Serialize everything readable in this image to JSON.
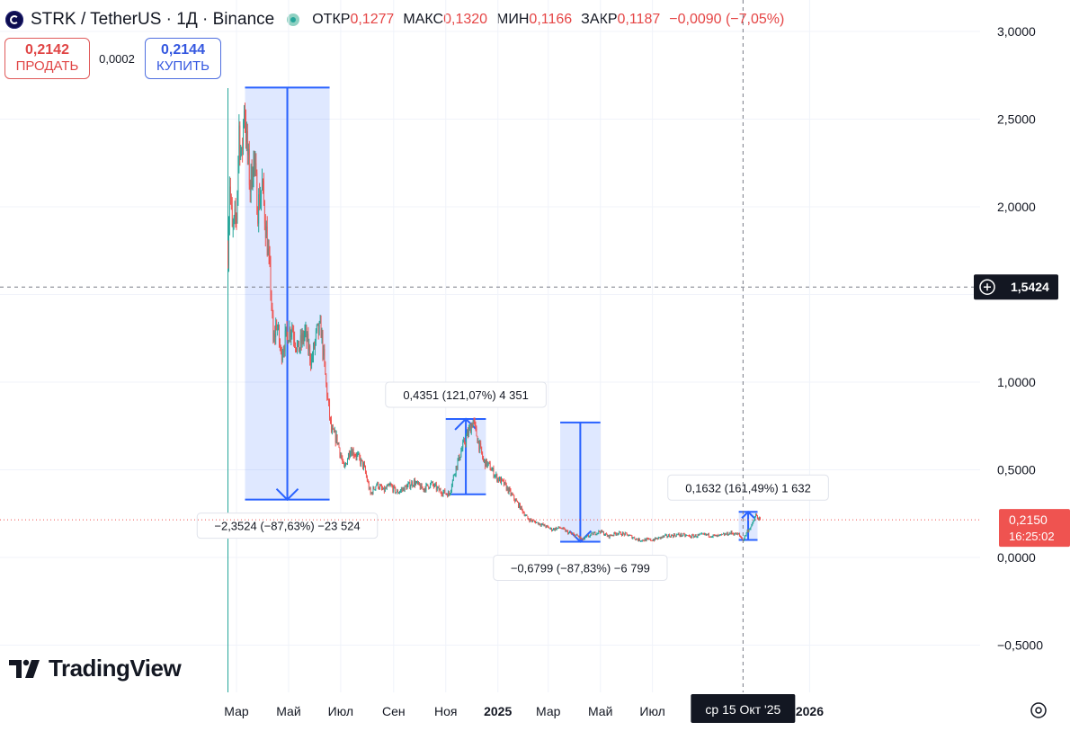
{
  "header": {
    "symbol_label": "STRK / TetherUS · 1Д · Binance",
    "open_label": "ОТКР",
    "open_value": "0,1277",
    "high_label": "МАКС",
    "high_value": "0,1320",
    "low_label": "МИН",
    "low_value": "0,1166",
    "close_label": "ЗАКР",
    "close_value": "0,1187",
    "change_value": "−0,0090 (−7,05%)"
  },
  "trade": {
    "sell_price": "0,2142",
    "sell_label": "ПРОДАТЬ",
    "spread": "0,0002",
    "buy_price": "0,2144",
    "buy_label": "КУПИТЬ"
  },
  "branding": {
    "logo_text": "TradingView"
  },
  "colors": {
    "up": "#26a69a",
    "down": "#ef5350",
    "measure_line": "#2962ff",
    "measure_fill": "#2962ff",
    "price_tag": "#ef5350",
    "crosshair_tag": "#131722"
  },
  "chart_data": {
    "type": "candlestick",
    "ylim": [
      -0.75,
      3.1
    ],
    "y_tick_values": [
      -0.5,
      0,
      0.5,
      1.0,
      1.5,
      2.0,
      2.5,
      3.0
    ],
    "y_tick_labels": [
      "−0,5000",
      "0,0000",
      "0,5000",
      "1,0000",
      "",
      "2,0000",
      "2,5000",
      "3,0000"
    ],
    "x_tick_labels": [
      {
        "date": "2024-03-01",
        "label": "Мар",
        "bold": false
      },
      {
        "date": "2024-05-01",
        "label": "Май",
        "bold": false
      },
      {
        "date": "2024-07-01",
        "label": "Июл",
        "bold": false
      },
      {
        "date": "2024-09-01",
        "label": "Сен",
        "bold": false
      },
      {
        "date": "2024-11-01",
        "label": "Ноя",
        "bold": false
      },
      {
        "date": "2025-01-01",
        "label": "2025",
        "bold": true
      },
      {
        "date": "2025-03-01",
        "label": "Мар",
        "bold": false
      },
      {
        "date": "2025-05-01",
        "label": "Май",
        "bold": false
      },
      {
        "date": "2025-07-01",
        "label": "Июл",
        "bold": false
      },
      {
        "date": "2026-01-01",
        "label": "2026",
        "bold": true
      }
    ],
    "price_path": [
      [
        "2024-02-20",
        1.75
      ],
      [
        "2024-02-22",
        2.15
      ],
      [
        "2024-02-25",
        1.85
      ],
      [
        "2024-03-01",
        1.95
      ],
      [
        "2024-03-04",
        2.45
      ],
      [
        "2024-03-07",
        2.25
      ],
      [
        "2024-03-10",
        2.6
      ],
      [
        "2024-03-13",
        2.35
      ],
      [
        "2024-03-17",
        2.12
      ],
      [
        "2024-03-21",
        2.28
      ],
      [
        "2024-03-26",
        2.0
      ],
      [
        "2024-03-31",
        2.12
      ],
      [
        "2024-04-05",
        1.85
      ],
      [
        "2024-04-10",
        1.55
      ],
      [
        "2024-04-13",
        1.22
      ],
      [
        "2024-04-17",
        1.34
      ],
      [
        "2024-04-22",
        1.16
      ],
      [
        "2024-04-28",
        1.26
      ],
      [
        "2024-05-05",
        1.32
      ],
      [
        "2024-05-12",
        1.18
      ],
      [
        "2024-05-20",
        1.28
      ],
      [
        "2024-05-28",
        1.12
      ],
      [
        "2024-06-03",
        1.28
      ],
      [
        "2024-06-08",
        1.3
      ],
      [
        "2024-06-14",
        0.98
      ],
      [
        "2024-06-20",
        0.72
      ],
      [
        "2024-06-27",
        0.67
      ],
      [
        "2024-07-05",
        0.5
      ],
      [
        "2024-07-12",
        0.62
      ],
      [
        "2024-07-20",
        0.58
      ],
      [
        "2024-07-28",
        0.52
      ],
      [
        "2024-08-05",
        0.36
      ],
      [
        "2024-08-12",
        0.42
      ],
      [
        "2024-08-20",
        0.38
      ],
      [
        "2024-08-28",
        0.41
      ],
      [
        "2024-09-05",
        0.37
      ],
      [
        "2024-09-15",
        0.4
      ],
      [
        "2024-09-25",
        0.43
      ],
      [
        "2024-10-05",
        0.39
      ],
      [
        "2024-10-15",
        0.42
      ],
      [
        "2024-10-25",
        0.38
      ],
      [
        "2024-11-05",
        0.36
      ],
      [
        "2024-11-12",
        0.5
      ],
      [
        "2024-11-20",
        0.62
      ],
      [
        "2024-11-28",
        0.72
      ],
      [
        "2024-12-03",
        0.78
      ],
      [
        "2024-12-08",
        0.68
      ],
      [
        "2024-12-15",
        0.55
      ],
      [
        "2024-12-22",
        0.52
      ],
      [
        "2024-12-30",
        0.46
      ],
      [
        "2025-01-08",
        0.42
      ],
      [
        "2025-01-18",
        0.35
      ],
      [
        "2025-01-28",
        0.28
      ],
      [
        "2025-02-05",
        0.22
      ],
      [
        "2025-02-15",
        0.2
      ],
      [
        "2025-02-25",
        0.18
      ],
      [
        "2025-03-05",
        0.16
      ],
      [
        "2025-03-15",
        0.17
      ],
      [
        "2025-03-25",
        0.14
      ],
      [
        "2025-04-05",
        0.12
      ],
      [
        "2025-04-10",
        0.1
      ],
      [
        "2025-04-20",
        0.13
      ],
      [
        "2025-05-01",
        0.15
      ],
      [
        "2025-05-10",
        0.12
      ],
      [
        "2025-05-20",
        0.14
      ],
      [
        "2025-06-01",
        0.13
      ],
      [
        "2025-06-15",
        0.1
      ],
      [
        "2025-07-01",
        0.1
      ],
      [
        "2025-07-15",
        0.12
      ],
      [
        "2025-08-01",
        0.13
      ],
      [
        "2025-08-15",
        0.12
      ],
      [
        "2025-09-01",
        0.13
      ],
      [
        "2025-09-15",
        0.12
      ],
      [
        "2025-10-01",
        0.14
      ],
      [
        "2025-10-10",
        0.13
      ],
      [
        "2025-10-15",
        0.1
      ],
      [
        "2025-10-20",
        0.15
      ],
      [
        "2025-10-25",
        0.18
      ],
      [
        "2025-10-30",
        0.24
      ],
      [
        "2025-11-04",
        0.21
      ]
    ],
    "measurements": [
      {
        "x_start": "2024-03-11",
        "x_end": "2024-06-18",
        "y_from": 2.68,
        "y_to": 0.33,
        "direction": "down",
        "label": "−2,3524 (−87,63%) −23 524"
      },
      {
        "x_start": "2024-11-01",
        "x_end": "2024-12-18",
        "y_from": 0.36,
        "y_to": 0.79,
        "direction": "up",
        "label": "0,4351 (121,07%) 4 351"
      },
      {
        "x_start": "2025-03-15",
        "x_end": "2025-05-01",
        "y_from": 0.77,
        "y_to": 0.09,
        "direction": "down",
        "label": "−0,6799 (−87,83%) −6 799"
      },
      {
        "x_start": "2025-10-10",
        "x_end": "2025-11-01",
        "y_from": 0.1,
        "y_to": 0.26,
        "direction": "up",
        "label": "0,1632 (161,49%) 1 632"
      }
    ],
    "crosshair": {
      "date": "2025-10-15",
      "date_label": "ср 15 Окт '25",
      "price": 1.5424,
      "price_label": "1,5424"
    },
    "last_price": {
      "value": 0.215,
      "label": "0,2150",
      "countdown": "16:25:02"
    },
    "first_bar_date": "2024-02-20"
  }
}
